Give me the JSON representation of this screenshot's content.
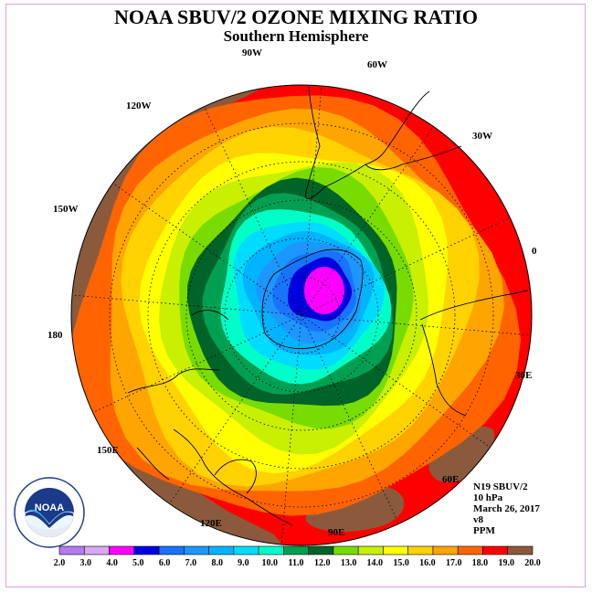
{
  "title": "NOAA SBUV/2 OZONE MIXING RATIO",
  "subtitle": "Southern Hemisphere",
  "longitude_labels": [
    "90W",
    "60W",
    "30W",
    "0",
    "30E",
    "60E",
    "90E",
    "120E",
    "150E",
    "180",
    "150W",
    "120W"
  ],
  "info": {
    "instrument": "N19 SBUV/2",
    "pressure": "10 hPa",
    "date": "March 26, 2017",
    "version": "v8",
    "units": "PPM"
  },
  "logo": {
    "text": "NOAA",
    "ring_text": "NATIONAL OCEANIC AND ATMOSPHERIC ADMINISTRATION · U.S. DEPARTMENT OF COMMERCE"
  },
  "legend": {
    "ticks": [
      "2.0",
      "3.0",
      "4.0",
      "5.0",
      "6.0",
      "7.0",
      "8.0",
      "9.0",
      "10.0",
      "11.0",
      "12.0",
      "13.0",
      "14.0",
      "15.0",
      "16.0",
      "17.0",
      "18.0",
      "19.0",
      "20.0"
    ],
    "colors": [
      "#b57bf0",
      "#d9a8ee",
      "#ff00ff",
      "#0000e0",
      "#1874ff",
      "#1e96ff",
      "#00b4ff",
      "#00dcff",
      "#00ffc8",
      "#00a050",
      "#006428",
      "#78dc00",
      "#c8f000",
      "#ffff00",
      "#ffd200",
      "#ffa500",
      "#ff6400",
      "#ff0000",
      "#8b5a3c"
    ]
  },
  "map_colors": {
    "background": "#ff0000",
    "bands": [
      "#ff6400",
      "#ffa500",
      "#ffd200",
      "#ffff00",
      "#c8f000",
      "#78dc00",
      "#006428",
      "#00a050",
      "#00ffc8",
      "#00dcff",
      "#00b4ff",
      "#1e96ff",
      "#1874ff",
      "#0000e0",
      "#ff00ff"
    ],
    "highs": "#8b5a3c"
  }
}
